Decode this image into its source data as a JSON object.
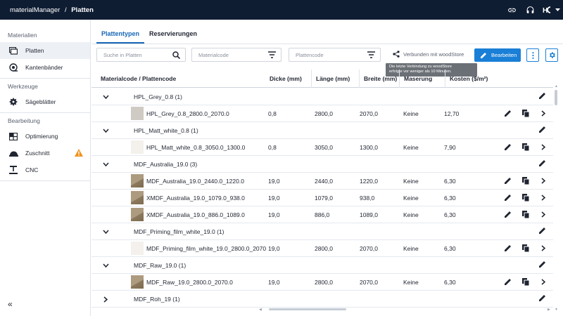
{
  "topbar": {
    "app_name": "materialManager",
    "separator": "/",
    "page": "Platten",
    "icons": [
      "link-icon",
      "support-icon",
      "company-logo-dropdown"
    ]
  },
  "sidebar": {
    "sections": [
      {
        "title": "Materialien",
        "items": [
          {
            "label": "Platten",
            "icon": "board-icon",
            "active": true
          },
          {
            "label": "Kantenbänder",
            "icon": "edgeband-icon"
          }
        ]
      },
      {
        "title": "Werkzeuge",
        "items": [
          {
            "label": "Sägeblätter",
            "icon": "sawblade-icon"
          }
        ]
      },
      {
        "title": "Bearbeitung",
        "items": [
          {
            "label": "Optimierung",
            "icon": "optimization-icon"
          },
          {
            "label": "Zuschnitt",
            "icon": "cutting-icon",
            "warning": true
          },
          {
            "label": "CNC",
            "icon": "cnc-icon"
          }
        ]
      }
    ],
    "collapse_label": "«"
  },
  "tabs": [
    {
      "label": "Plattentypen",
      "active": true
    },
    {
      "label": "Reservierungen"
    }
  ],
  "toolbar": {
    "search_placeholder": "Suche in Platten",
    "materialcode_placeholder": "Materialcode",
    "plattencode_placeholder": "Plattencode",
    "connected_label": "Verbunden mit woodStore",
    "tooltip_line1": "Die letzte Verbindung zu woodStore",
    "tooltip_line2": "erfolgte vor weniger als 10 Minuten.",
    "edit_label": "Bearbeiten",
    "accent": "#1a7fd6"
  },
  "table": {
    "headers": {
      "code": "Materialcode / Plattencode",
      "dicke": "Dicke (mm)",
      "laenge": "Länge (mm)",
      "breite": "Breite (mm)",
      "maserung": "Maserung",
      "kosten": "Kosten ($/m²)"
    },
    "rows": [
      {
        "type": "group",
        "label": "HPL_Grey_0.8 (1)",
        "expanded": true
      },
      {
        "type": "item",
        "code": "HPL_Grey_0.8_2800.0_2070.0",
        "dicke": "0,8",
        "laenge": "2800,0",
        "breite": "2070,0",
        "maserung": "Keine",
        "kosten": "12,70",
        "thumb": "grey"
      },
      {
        "type": "group",
        "label": "HPL_Matt_white_0.8 (1)",
        "expanded": true
      },
      {
        "type": "item",
        "code": "HPL_Matt_white_0.8_3050.0_1300.0",
        "dicke": "0,8",
        "laenge": "3050,0",
        "breite": "1300,0",
        "maserung": "Keine",
        "kosten": "7,90",
        "thumb": "white"
      },
      {
        "type": "group",
        "label": "MDF_Australia_19.0 (3)",
        "expanded": true
      },
      {
        "type": "item",
        "code": "MDF_Australia_19.0_2440.0_1220.0",
        "dicke": "19,0",
        "laenge": "2440,0",
        "breite": "1220,0",
        "maserung": "Keine",
        "kosten": "6,30",
        "thumb": "mdf"
      },
      {
        "type": "item",
        "code": "XMDF_Australia_19.0_1079.0_938.0",
        "dicke": "19,0",
        "laenge": "1079,0",
        "breite": "938,0",
        "maserung": "Keine",
        "kosten": "6,30",
        "thumb": "mdf"
      },
      {
        "type": "item",
        "code": "XMDF_Australia_19.0_886.0_1089.0",
        "dicke": "19,0",
        "laenge": "886,0",
        "breite": "1089,0",
        "maserung": "Keine",
        "kosten": "6,30",
        "thumb": "mdf"
      },
      {
        "type": "group",
        "label": "MDF_Priming_film_white_19.0 (1)",
        "expanded": true
      },
      {
        "type": "item",
        "code": "MDF_Priming_film_white_19.0_2800.0_2070",
        "dicke": "19,0",
        "laenge": "2800,0",
        "breite": "2070,0",
        "maserung": "Keine",
        "kosten": "6,30",
        "thumb": "white"
      },
      {
        "type": "group",
        "label": "MDF_Raw_19.0 (1)",
        "expanded": true
      },
      {
        "type": "item",
        "code": "MDF_Raw_19.0_2800.0_2070.0",
        "dicke": "19,0",
        "laenge": "2800,0",
        "breite": "2070,0",
        "maserung": "Keine",
        "kosten": "6,30",
        "thumb": "mdf"
      },
      {
        "type": "group",
        "label": "MDF_Roh_19 (1)",
        "expanded": false
      }
    ]
  }
}
